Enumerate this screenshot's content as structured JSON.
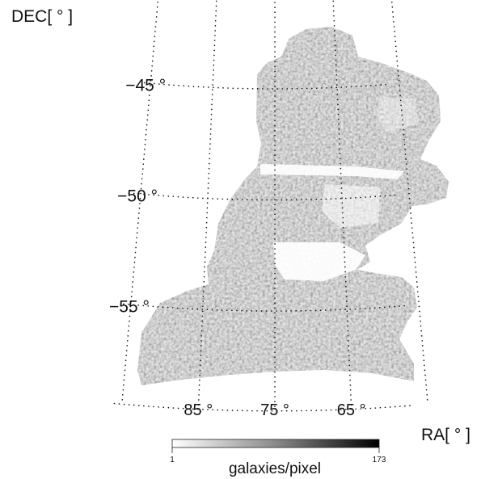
{
  "chart_data": {
    "type": "heatmap",
    "projection": "curved RA/DEC sky map with dotted graticule",
    "xlabel": "RA[ ° ]",
    "ylabel": "DEC[ ° ]",
    "ra_ticks": [
      {
        "value": 85,
        "label": "85 °"
      },
      {
        "value": 75,
        "label": "75 °"
      },
      {
        "value": 65,
        "label": "65 °"
      }
    ],
    "dec_ticks": [
      {
        "value": -45,
        "label": "−45 °"
      },
      {
        "value": -50,
        "label": "−50 °"
      },
      {
        "value": -55,
        "label": "−55 °"
      }
    ],
    "ra_range": [
      59,
      90
    ],
    "dec_range": [
      -59.5,
      -42.5
    ],
    "grid": true,
    "colorbar": {
      "label": "galaxies/pixel",
      "min": 1,
      "max": 173,
      "min_label": "1",
      "max_label": "173",
      "cmap": "white-to-black",
      "placement": "bottom"
    },
    "footprint_colors": {
      "low": "#f2f2f2",
      "high": "#0a0a0a"
    }
  }
}
